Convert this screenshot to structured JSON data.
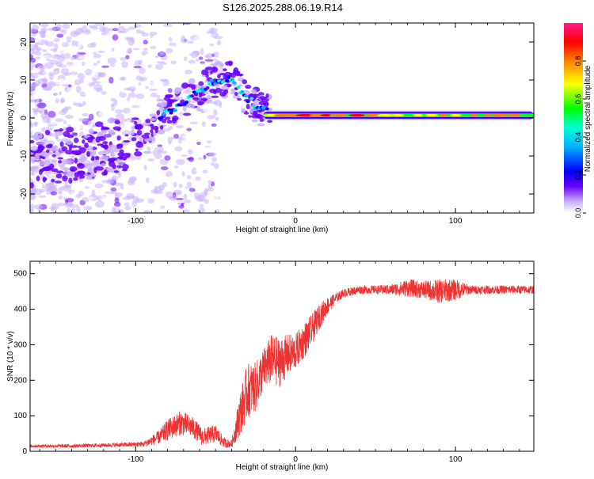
{
  "title": "S126.2025.288.06.19.R14",
  "colors": {
    "snr_line": "#ee3333",
    "axis": "#000000",
    "colorbar": [
      "#ffffff",
      "#b78cff",
      "#6a00ff",
      "#0000ff",
      "#00ffff",
      "#00ff00",
      "#ffff00",
      "#ff8000",
      "#ff0000",
      "#ff1a8c"
    ]
  },
  "chart_data": [
    {
      "type": "heatmap",
      "name": "spectrogram",
      "xlabel": "Height of straight line (km)",
      "ylabel": "Frequency (Hz)",
      "xlim": [
        -166,
        149
      ],
      "ylim": [
        -25,
        25
      ],
      "xticks": [
        -100,
        0,
        100
      ],
      "yticks": [
        -20,
        -10,
        0,
        10,
        20
      ],
      "colorbar": {
        "label": "Normalized spectral amplitude",
        "range": [
          0,
          1
        ],
        "ticks": [
          0.0,
          0.2,
          0.4,
          0.6,
          0.8
        ]
      },
      "ridge": {
        "description_points": [
          {
            "x": -166,
            "y": -11
          },
          {
            "x": -130,
            "y": -9
          },
          {
            "x": -110,
            "y": -7
          },
          {
            "x": -95,
            "y": -6
          },
          {
            "x": -85,
            "y": 0
          },
          {
            "x": -75,
            "y": 3
          },
          {
            "x": -60,
            "y": 7
          },
          {
            "x": -50,
            "y": 10
          },
          {
            "x": -40,
            "y": 10
          },
          {
            "x": -30,
            "y": 5
          },
          {
            "x": -20,
            "y": 2
          },
          {
            "x": -10,
            "y": 0
          },
          {
            "x": 0,
            "y": 1
          },
          {
            "x": 20,
            "y": 1
          },
          {
            "x": 60,
            "y": 1
          },
          {
            "x": 100,
            "y": 1
          },
          {
            "x": 149,
            "y": 0.5
          }
        ],
        "steady_band": {
          "x_from": -20,
          "x_to": 149,
          "freq_hz": 0.7,
          "peak_amplitude": 0.95
        }
      }
    },
    {
      "type": "line",
      "name": "snr",
      "xlabel": "Height of straight line (km)",
      "ylabel": "SNR (10 * v/v)",
      "xlim": [
        -166,
        149
      ],
      "ylim": [
        0,
        535
      ],
      "xticks": [
        -100,
        0,
        100
      ],
      "yticks": [
        0,
        100,
        200,
        300,
        400,
        500
      ],
      "series": [
        {
          "name": "SNR",
          "x": [
            -166,
            -140,
            -110,
            -95,
            -85,
            -80,
            -72,
            -65,
            -58,
            -50,
            -45,
            -40,
            -35,
            -30,
            -25,
            -20,
            -15,
            -10,
            -5,
            0,
            5,
            10,
            15,
            20,
            25,
            30,
            40,
            50,
            60,
            70,
            80,
            90,
            100,
            110,
            120,
            130,
            149
          ],
          "y": [
            15,
            15,
            18,
            20,
            40,
            60,
            80,
            70,
            40,
            50,
            25,
            20,
            100,
            170,
            180,
            230,
            260,
            250,
            270,
            280,
            310,
            340,
            380,
            410,
            430,
            445,
            455,
            455,
            455,
            460,
            455,
            450,
            455,
            455,
            455,
            455,
            455
          ],
          "noise": [
            4,
            5,
            6,
            8,
            20,
            30,
            35,
            30,
            25,
            25,
            15,
            10,
            60,
            80,
            70,
            60,
            70,
            70,
            60,
            50,
            50,
            45,
            35,
            25,
            15,
            12,
            12,
            12,
            15,
            25,
            25,
            35,
            30,
            12,
            12,
            12,
            12
          ]
        }
      ]
    }
  ]
}
